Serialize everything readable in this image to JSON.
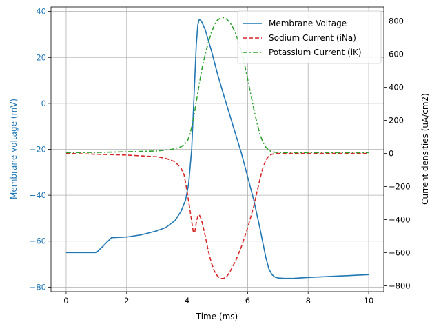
{
  "chart_data": {
    "type": "line",
    "xlabel": "Time (ms)",
    "ylabel_left": "Membrane voltage (mV)",
    "ylabel_right": "Current densities (uA/cm2)",
    "xlim": [
      -0.5,
      10.5
    ],
    "ylim_left": [
      -82,
      42
    ],
    "ylim_right": [
      -835,
      885
    ],
    "xticks": [
      0,
      2,
      4,
      6,
      8,
      10
    ],
    "yticks_left": [
      -80,
      -60,
      -40,
      -20,
      0,
      20,
      40
    ],
    "yticks_right": [
      -800,
      -600,
      -400,
      -200,
      0,
      200,
      400,
      600,
      800
    ],
    "grid": true,
    "legend_position": "top-right",
    "left_axis_color": "#1f77b4",
    "series": [
      {
        "name": "Membrane Voltage",
        "axis": "left",
        "color": "#1f77b4",
        "style": "solid",
        "x": [
          0,
          1.0,
          1.5,
          2.0,
          2.5,
          3.0,
          3.3,
          3.6,
          3.8,
          3.95,
          4.05,
          4.15,
          4.25,
          4.3,
          4.35,
          4.4,
          4.45,
          4.5,
          4.6,
          4.8,
          5.0,
          5.2,
          5.5,
          5.8,
          6.0,
          6.2,
          6.4,
          6.6,
          6.7,
          6.8,
          6.9,
          7.0,
          7.2,
          7.5,
          8.0,
          9.0,
          10.0
        ],
        "y": [
          -65,
          -65,
          -58.5,
          -58.2,
          -57.2,
          -55.5,
          -54,
          -51,
          -47,
          -42,
          -35,
          -20,
          10,
          25,
          34,
          36.5,
          36.2,
          35,
          32,
          23,
          13,
          4,
          -9,
          -22,
          -32,
          -42,
          -54,
          -67,
          -72,
          -74.5,
          -75.6,
          -76,
          -76.2,
          -76.2,
          -75.8,
          -75.2,
          -74.6
        ]
      },
      {
        "name": "Sodium Current (iNa)",
        "axis": "left_scaled_right",
        "color": "#d62728",
        "style": "dashed",
        "x": [
          0,
          1.0,
          2.0,
          2.5,
          3.0,
          3.3,
          3.6,
          3.8,
          3.9,
          4.0,
          4.1,
          4.2,
          4.25,
          4.3,
          4.35,
          4.4,
          4.45,
          4.5,
          4.6,
          4.7,
          4.8,
          4.9,
          5.0,
          5.1,
          5.2,
          5.3,
          5.4,
          5.6,
          5.8,
          6.0,
          6.2,
          6.3,
          6.4,
          6.5,
          6.6,
          6.7,
          6.8,
          7.0,
          8.0,
          9.0,
          10.0
        ],
        "y": [
          0,
          -5,
          -10,
          -15,
          -20,
          -30,
          -50,
          -90,
          -130,
          -230,
          -350,
          -470,
          -480,
          -420,
          -380,
          -370,
          -390,
          -420,
          -500,
          -590,
          -660,
          -710,
          -740,
          -755,
          -755,
          -745,
          -720,
          -650,
          -560,
          -450,
          -320,
          -240,
          -160,
          -90,
          -40,
          -15,
          -5,
          0,
          0,
          0,
          0
        ]
      },
      {
        "name": "Potassium Current (iK)",
        "axis": "right",
        "color": "#2ca02c",
        "style": "dashdot",
        "x": [
          0,
          1.0,
          2.0,
          3.0,
          3.5,
          3.8,
          4.0,
          4.1,
          4.2,
          4.3,
          4.4,
          4.5,
          4.6,
          4.7,
          4.8,
          4.9,
          5.0,
          5.1,
          5.2,
          5.3,
          5.4,
          5.5,
          5.6,
          5.7,
          5.8,
          5.9,
          6.0,
          6.1,
          6.2,
          6.3,
          6.4,
          6.5,
          6.6,
          6.7,
          6.8,
          6.9,
          7.0,
          7.2,
          8.0,
          9.0,
          10.0
        ],
        "y": [
          5,
          6,
          10,
          15,
          25,
          40,
          70,
          120,
          200,
          310,
          420,
          520,
          600,
          670,
          730,
          775,
          805,
          818,
          820,
          812,
          795,
          765,
          725,
          675,
          610,
          535,
          450,
          360,
          270,
          190,
          120,
          70,
          38,
          20,
          10,
          7,
          5,
          5,
          5,
          5,
          5
        ]
      }
    ]
  }
}
